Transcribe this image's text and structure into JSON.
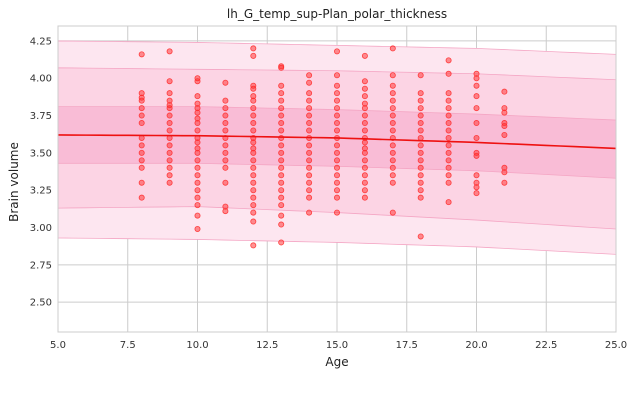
{
  "chart_data": {
    "type": "scatter",
    "title": "lh_G_temp_sup-Plan_polar_thickness",
    "xlabel": "Age",
    "ylabel": "Brain volume",
    "xlim": [
      5.0,
      25.0
    ],
    "ylim": [
      2.3,
      4.35
    ],
    "x_ticks": [
      "5.0",
      "7.5",
      "10.0",
      "12.5",
      "15.0",
      "17.5",
      "20.0",
      "22.5",
      "25.0"
    ],
    "y_ticks": [
      "2.50",
      "2.75",
      "3.00",
      "3.25",
      "3.50",
      "3.75",
      "4.00",
      "4.25"
    ],
    "grid": true,
    "colors": {
      "points": "#ff2a2a",
      "trend": "#ee1111",
      "band_outer": "#fde6f0",
      "band_middle": "#fcd4e4",
      "band_inner": "#f9bcd6",
      "band_edge": "#f4a6c4"
    },
    "trend_line": {
      "x": [
        5,
        10,
        15,
        20,
        25
      ],
      "y": [
        3.62,
        3.615,
        3.6,
        3.57,
        3.53
      ]
    },
    "bands": [
      {
        "name": "outer",
        "x": [
          5,
          10,
          15,
          20,
          25
        ],
        "lower": [
          2.93,
          2.92,
          2.9,
          2.87,
          2.82
        ],
        "upper": [
          4.25,
          4.24,
          4.22,
          4.2,
          4.16
        ]
      },
      {
        "name": "middle",
        "x": [
          5,
          10,
          15,
          20,
          25
        ],
        "lower": [
          3.13,
          3.14,
          3.1,
          3.05,
          2.99
        ],
        "upper": [
          4.07,
          4.06,
          4.05,
          4.03,
          3.99
        ]
      },
      {
        "name": "inner",
        "x": [
          5,
          10,
          15,
          20,
          25
        ],
        "lower": [
          3.43,
          3.43,
          3.41,
          3.38,
          3.33
        ],
        "upper": [
          3.81,
          3.81,
          3.79,
          3.76,
          3.72
        ]
      }
    ],
    "points": [
      {
        "x": 8,
        "y": 3.9
      },
      {
        "x": 8,
        "y": 3.87
      },
      {
        "x": 8,
        "y": 3.85
      },
      {
        "x": 8,
        "y": 3.8
      },
      {
        "x": 8,
        "y": 3.75
      },
      {
        "x": 8,
        "y": 3.7
      },
      {
        "x": 8,
        "y": 3.6
      },
      {
        "x": 8,
        "y": 3.55
      },
      {
        "x": 8,
        "y": 3.5
      },
      {
        "x": 8,
        "y": 3.45
      },
      {
        "x": 8,
        "y": 3.4
      },
      {
        "x": 8,
        "y": 3.3
      },
      {
        "x": 8,
        "y": 3.2
      },
      {
        "x": 8,
        "y": 4.16
      },
      {
        "x": 9,
        "y": 4.18
      },
      {
        "x": 9,
        "y": 3.98
      },
      {
        "x": 9,
        "y": 3.9
      },
      {
        "x": 9,
        "y": 3.85
      },
      {
        "x": 9,
        "y": 3.82
      },
      {
        "x": 9,
        "y": 3.8
      },
      {
        "x": 9,
        "y": 3.75
      },
      {
        "x": 9,
        "y": 3.7
      },
      {
        "x": 9,
        "y": 3.65
      },
      {
        "x": 9,
        "y": 3.6
      },
      {
        "x": 9,
        "y": 3.55
      },
      {
        "x": 9,
        "y": 3.5
      },
      {
        "x": 9,
        "y": 3.45
      },
      {
        "x": 9,
        "y": 3.4
      },
      {
        "x": 9,
        "y": 3.35
      },
      {
        "x": 9,
        "y": 3.3
      },
      {
        "x": 10,
        "y": 4.0
      },
      {
        "x": 10,
        "y": 3.98
      },
      {
        "x": 10,
        "y": 3.88
      },
      {
        "x": 10,
        "y": 3.83
      },
      {
        "x": 10,
        "y": 3.8
      },
      {
        "x": 10,
        "y": 3.77
      },
      {
        "x": 10,
        "y": 3.73
      },
      {
        "x": 10,
        "y": 3.7
      },
      {
        "x": 10,
        "y": 3.65
      },
      {
        "x": 10,
        "y": 3.6
      },
      {
        "x": 10,
        "y": 3.57
      },
      {
        "x": 10,
        "y": 3.53
      },
      {
        "x": 10,
        "y": 3.5
      },
      {
        "x": 10,
        "y": 3.45
      },
      {
        "x": 10,
        "y": 3.4
      },
      {
        "x": 10,
        "y": 3.35
      },
      {
        "x": 10,
        "y": 3.3
      },
      {
        "x": 10,
        "y": 3.25
      },
      {
        "x": 10,
        "y": 3.2
      },
      {
        "x": 10,
        "y": 3.15
      },
      {
        "x": 10,
        "y": 3.08
      },
      {
        "x": 10,
        "y": 2.99
      },
      {
        "x": 11,
        "y": 3.97
      },
      {
        "x": 11,
        "y": 3.85
      },
      {
        "x": 11,
        "y": 3.8
      },
      {
        "x": 11,
        "y": 3.75
      },
      {
        "x": 11,
        "y": 3.7
      },
      {
        "x": 11,
        "y": 3.65
      },
      {
        "x": 11,
        "y": 3.6
      },
      {
        "x": 11,
        "y": 3.55
      },
      {
        "x": 11,
        "y": 3.5
      },
      {
        "x": 11,
        "y": 3.45
      },
      {
        "x": 11,
        "y": 3.4
      },
      {
        "x": 11,
        "y": 3.3
      },
      {
        "x": 11,
        "y": 3.14
      },
      {
        "x": 11,
        "y": 3.11
      },
      {
        "x": 12,
        "y": 4.2
      },
      {
        "x": 12,
        "y": 4.15
      },
      {
        "x": 12,
        "y": 3.95
      },
      {
        "x": 12,
        "y": 3.93
      },
      {
        "x": 12,
        "y": 3.88
      },
      {
        "x": 12,
        "y": 3.85
      },
      {
        "x": 12,
        "y": 3.8
      },
      {
        "x": 12,
        "y": 3.75
      },
      {
        "x": 12,
        "y": 3.7
      },
      {
        "x": 12,
        "y": 3.65
      },
      {
        "x": 12,
        "y": 3.6
      },
      {
        "x": 12,
        "y": 3.57
      },
      {
        "x": 12,
        "y": 3.53
      },
      {
        "x": 12,
        "y": 3.5
      },
      {
        "x": 12,
        "y": 3.45
      },
      {
        "x": 12,
        "y": 3.4
      },
      {
        "x": 12,
        "y": 3.35
      },
      {
        "x": 12,
        "y": 3.3
      },
      {
        "x": 12,
        "y": 3.25
      },
      {
        "x": 12,
        "y": 3.2
      },
      {
        "x": 12,
        "y": 3.15
      },
      {
        "x": 12,
        "y": 3.1
      },
      {
        "x": 12,
        "y": 3.04
      },
      {
        "x": 12,
        "y": 2.88
      },
      {
        "x": 13,
        "y": 4.08
      },
      {
        "x": 13,
        "y": 4.07
      },
      {
        "x": 13,
        "y": 3.95
      },
      {
        "x": 13,
        "y": 3.9
      },
      {
        "x": 13,
        "y": 3.85
      },
      {
        "x": 13,
        "y": 3.8
      },
      {
        "x": 13,
        "y": 3.75
      },
      {
        "x": 13,
        "y": 3.7
      },
      {
        "x": 13,
        "y": 3.65
      },
      {
        "x": 13,
        "y": 3.6
      },
      {
        "x": 13,
        "y": 3.55
      },
      {
        "x": 13,
        "y": 3.5
      },
      {
        "x": 13,
        "y": 3.45
      },
      {
        "x": 13,
        "y": 3.4
      },
      {
        "x": 13,
        "y": 3.35
      },
      {
        "x": 13,
        "y": 3.3
      },
      {
        "x": 13,
        "y": 3.25
      },
      {
        "x": 13,
        "y": 3.2
      },
      {
        "x": 13,
        "y": 3.15
      },
      {
        "x": 13,
        "y": 3.08
      },
      {
        "x": 13,
        "y": 3.02
      },
      {
        "x": 13,
        "y": 2.9
      },
      {
        "x": 14,
        "y": 4.02
      },
      {
        "x": 14,
        "y": 3.97
      },
      {
        "x": 14,
        "y": 3.9
      },
      {
        "x": 14,
        "y": 3.85
      },
      {
        "x": 14,
        "y": 3.8
      },
      {
        "x": 14,
        "y": 3.75
      },
      {
        "x": 14,
        "y": 3.7
      },
      {
        "x": 14,
        "y": 3.65
      },
      {
        "x": 14,
        "y": 3.6
      },
      {
        "x": 14,
        "y": 3.55
      },
      {
        "x": 14,
        "y": 3.5
      },
      {
        "x": 14,
        "y": 3.45
      },
      {
        "x": 14,
        "y": 3.4
      },
      {
        "x": 14,
        "y": 3.35
      },
      {
        "x": 14,
        "y": 3.3
      },
      {
        "x": 14,
        "y": 3.25
      },
      {
        "x": 14,
        "y": 3.2
      },
      {
        "x": 14,
        "y": 3.1
      },
      {
        "x": 15,
        "y": 4.18
      },
      {
        "x": 15,
        "y": 4.02
      },
      {
        "x": 15,
        "y": 3.95
      },
      {
        "x": 15,
        "y": 3.9
      },
      {
        "x": 15,
        "y": 3.85
      },
      {
        "x": 15,
        "y": 3.8
      },
      {
        "x": 15,
        "y": 3.75
      },
      {
        "x": 15,
        "y": 3.7
      },
      {
        "x": 15,
        "y": 3.65
      },
      {
        "x": 15,
        "y": 3.6
      },
      {
        "x": 15,
        "y": 3.55
      },
      {
        "x": 15,
        "y": 3.5
      },
      {
        "x": 15,
        "y": 3.45
      },
      {
        "x": 15,
        "y": 3.4
      },
      {
        "x": 15,
        "y": 3.35
      },
      {
        "x": 15,
        "y": 3.3
      },
      {
        "x": 15,
        "y": 3.25
      },
      {
        "x": 15,
        "y": 3.2
      },
      {
        "x": 15,
        "y": 3.1
      },
      {
        "x": 16,
        "y": 4.15
      },
      {
        "x": 16,
        "y": 3.98
      },
      {
        "x": 16,
        "y": 3.93
      },
      {
        "x": 16,
        "y": 3.88
      },
      {
        "x": 16,
        "y": 3.83
      },
      {
        "x": 16,
        "y": 3.8
      },
      {
        "x": 16,
        "y": 3.75
      },
      {
        "x": 16,
        "y": 3.7
      },
      {
        "x": 16,
        "y": 3.65
      },
      {
        "x": 16,
        "y": 3.6
      },
      {
        "x": 16,
        "y": 3.57
      },
      {
        "x": 16,
        "y": 3.53
      },
      {
        "x": 16,
        "y": 3.5
      },
      {
        "x": 16,
        "y": 3.45
      },
      {
        "x": 16,
        "y": 3.4
      },
      {
        "x": 16,
        "y": 3.35
      },
      {
        "x": 16,
        "y": 3.3
      },
      {
        "x": 16,
        "y": 3.25
      },
      {
        "x": 16,
        "y": 3.2
      },
      {
        "x": 17,
        "y": 4.2
      },
      {
        "x": 17,
        "y": 4.02
      },
      {
        "x": 17,
        "y": 3.95
      },
      {
        "x": 17,
        "y": 3.9
      },
      {
        "x": 17,
        "y": 3.85
      },
      {
        "x": 17,
        "y": 3.8
      },
      {
        "x": 17,
        "y": 3.75
      },
      {
        "x": 17,
        "y": 3.7
      },
      {
        "x": 17,
        "y": 3.65
      },
      {
        "x": 17,
        "y": 3.6
      },
      {
        "x": 17,
        "y": 3.55
      },
      {
        "x": 17,
        "y": 3.5
      },
      {
        "x": 17,
        "y": 3.45
      },
      {
        "x": 17,
        "y": 3.4
      },
      {
        "x": 17,
        "y": 3.35
      },
      {
        "x": 17,
        "y": 3.3
      },
      {
        "x": 17,
        "y": 3.1
      },
      {
        "x": 18,
        "y": 4.02
      },
      {
        "x": 18,
        "y": 3.9
      },
      {
        "x": 18,
        "y": 3.85
      },
      {
        "x": 18,
        "y": 3.8
      },
      {
        "x": 18,
        "y": 3.75
      },
      {
        "x": 18,
        "y": 3.7
      },
      {
        "x": 18,
        "y": 3.65
      },
      {
        "x": 18,
        "y": 3.6
      },
      {
        "x": 18,
        "y": 3.55
      },
      {
        "x": 18,
        "y": 3.5
      },
      {
        "x": 18,
        "y": 3.45
      },
      {
        "x": 18,
        "y": 3.4
      },
      {
        "x": 18,
        "y": 3.35
      },
      {
        "x": 18,
        "y": 3.3
      },
      {
        "x": 18,
        "y": 3.25
      },
      {
        "x": 18,
        "y": 3.2
      },
      {
        "x": 18,
        "y": 2.94
      },
      {
        "x": 19,
        "y": 4.12
      },
      {
        "x": 19,
        "y": 4.03
      },
      {
        "x": 19,
        "y": 3.9
      },
      {
        "x": 19,
        "y": 3.85
      },
      {
        "x": 19,
        "y": 3.8
      },
      {
        "x": 19,
        "y": 3.75
      },
      {
        "x": 19,
        "y": 3.7
      },
      {
        "x": 19,
        "y": 3.65
      },
      {
        "x": 19,
        "y": 3.6
      },
      {
        "x": 19,
        "y": 3.55
      },
      {
        "x": 19,
        "y": 3.5
      },
      {
        "x": 19,
        "y": 3.45
      },
      {
        "x": 19,
        "y": 3.4
      },
      {
        "x": 19,
        "y": 3.35
      },
      {
        "x": 19,
        "y": 3.3
      },
      {
        "x": 19,
        "y": 3.17
      },
      {
        "x": 20,
        "y": 4.03
      },
      {
        "x": 20,
        "y": 4.0
      },
      {
        "x": 20,
        "y": 3.95
      },
      {
        "x": 20,
        "y": 3.88
      },
      {
        "x": 20,
        "y": 3.8
      },
      {
        "x": 20,
        "y": 3.7
      },
      {
        "x": 20,
        "y": 3.6
      },
      {
        "x": 20,
        "y": 3.5
      },
      {
        "x": 20,
        "y": 3.48
      },
      {
        "x": 20,
        "y": 3.35
      },
      {
        "x": 20,
        "y": 3.3
      },
      {
        "x": 20,
        "y": 3.27
      },
      {
        "x": 20,
        "y": 3.23
      },
      {
        "x": 21,
        "y": 3.91
      },
      {
        "x": 21,
        "y": 3.8
      },
      {
        "x": 21,
        "y": 3.77
      },
      {
        "x": 21,
        "y": 3.7
      },
      {
        "x": 21,
        "y": 3.68
      },
      {
        "x": 21,
        "y": 3.62
      },
      {
        "x": 21,
        "y": 3.4
      },
      {
        "x": 21,
        "y": 3.37
      },
      {
        "x": 21,
        "y": 3.3
      }
    ]
  }
}
